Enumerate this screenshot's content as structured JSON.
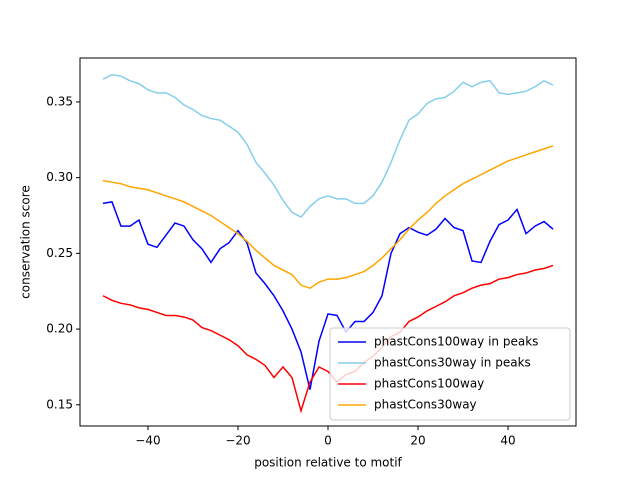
{
  "chart_data": {
    "type": "line",
    "xlabel": "position relative to motif",
    "ylabel": "conservation score",
    "x": [
      -50,
      -48,
      -46,
      -44,
      -42,
      -40,
      -38,
      -36,
      -34,
      -32,
      -30,
      -28,
      -26,
      -24,
      -22,
      -20,
      -18,
      -16,
      -14,
      -12,
      -10,
      -8,
      -6,
      -4,
      -2,
      0,
      2,
      4,
      6,
      8,
      10,
      12,
      14,
      16,
      18,
      20,
      22,
      24,
      26,
      28,
      30,
      32,
      34,
      36,
      38,
      40,
      42,
      44,
      46,
      48,
      50
    ],
    "series": [
      {
        "name": "phastCons100way in peaks",
        "color": "#0000ff",
        "values": [
          0.283,
          0.284,
          0.268,
          0.268,
          0.272,
          0.256,
          0.254,
          0.262,
          0.27,
          0.268,
          0.259,
          0.253,
          0.244,
          0.253,
          0.257,
          0.265,
          0.257,
          0.237,
          0.23,
          0.222,
          0.212,
          0.2,
          0.185,
          0.16,
          0.192,
          0.21,
          0.209,
          0.198,
          0.205,
          0.205,
          0.211,
          0.222,
          0.25,
          0.263,
          0.267,
          0.264,
          0.262,
          0.266,
          0.273,
          0.267,
          0.265,
          0.245,
          0.244,
          0.258,
          0.269,
          0.272,
          0.279,
          0.263,
          0.268,
          0.271,
          0.266
        ]
      },
      {
        "name": "phastCons30way in peaks",
        "color": "#87ceeb",
        "values": [
          0.365,
          0.368,
          0.367,
          0.364,
          0.362,
          0.358,
          0.356,
          0.356,
          0.353,
          0.348,
          0.345,
          0.341,
          0.339,
          0.338,
          0.334,
          0.33,
          0.322,
          0.31,
          0.303,
          0.295,
          0.285,
          0.277,
          0.274,
          0.281,
          0.286,
          0.288,
          0.286,
          0.286,
          0.283,
          0.283,
          0.288,
          0.297,
          0.31,
          0.325,
          0.338,
          0.342,
          0.349,
          0.352,
          0.353,
          0.357,
          0.363,
          0.36,
          0.363,
          0.364,
          0.356,
          0.355,
          0.356,
          0.357,
          0.36,
          0.364,
          0.361
        ]
      },
      {
        "name": "phastCons100way",
        "color": "#ff0000",
        "values": [
          0.222,
          0.219,
          0.217,
          0.216,
          0.214,
          0.213,
          0.211,
          0.209,
          0.209,
          0.208,
          0.206,
          0.201,
          0.199,
          0.196,
          0.193,
          0.189,
          0.183,
          0.18,
          0.176,
          0.168,
          0.175,
          0.168,
          0.146,
          0.165,
          0.175,
          0.172,
          0.165,
          0.17,
          0.172,
          0.178,
          0.182,
          0.188,
          0.195,
          0.198,
          0.205,
          0.208,
          0.212,
          0.215,
          0.218,
          0.222,
          0.224,
          0.227,
          0.229,
          0.23,
          0.233,
          0.234,
          0.236,
          0.237,
          0.239,
          0.24,
          0.242
        ]
      },
      {
        "name": "phastCons30way",
        "color": "#ffa500",
        "values": [
          0.298,
          0.297,
          0.296,
          0.294,
          0.293,
          0.292,
          0.29,
          0.288,
          0.286,
          0.284,
          0.281,
          0.278,
          0.275,
          0.271,
          0.267,
          0.263,
          0.258,
          0.252,
          0.247,
          0.242,
          0.239,
          0.236,
          0.229,
          0.227,
          0.231,
          0.233,
          0.233,
          0.234,
          0.236,
          0.238,
          0.242,
          0.247,
          0.253,
          0.259,
          0.266,
          0.272,
          0.277,
          0.283,
          0.288,
          0.292,
          0.296,
          0.299,
          0.302,
          0.305,
          0.308,
          0.311,
          0.313,
          0.315,
          0.317,
          0.319,
          0.321
        ]
      }
    ],
    "xlim": [
      -55.1,
      55.1
    ],
    "ylim": [
      0.136,
      0.379
    ],
    "xticks": [
      {
        "value": -40,
        "label": "−40"
      },
      {
        "value": -20,
        "label": "−20"
      },
      0,
      20,
      40
    ],
    "yticks": [
      0.15,
      {
        "value": 0.2,
        "label": "0.20"
      },
      0.25,
      {
        "value": 0.3,
        "label": "0.30"
      },
      0.35
    ],
    "legend": "lower right"
  }
}
